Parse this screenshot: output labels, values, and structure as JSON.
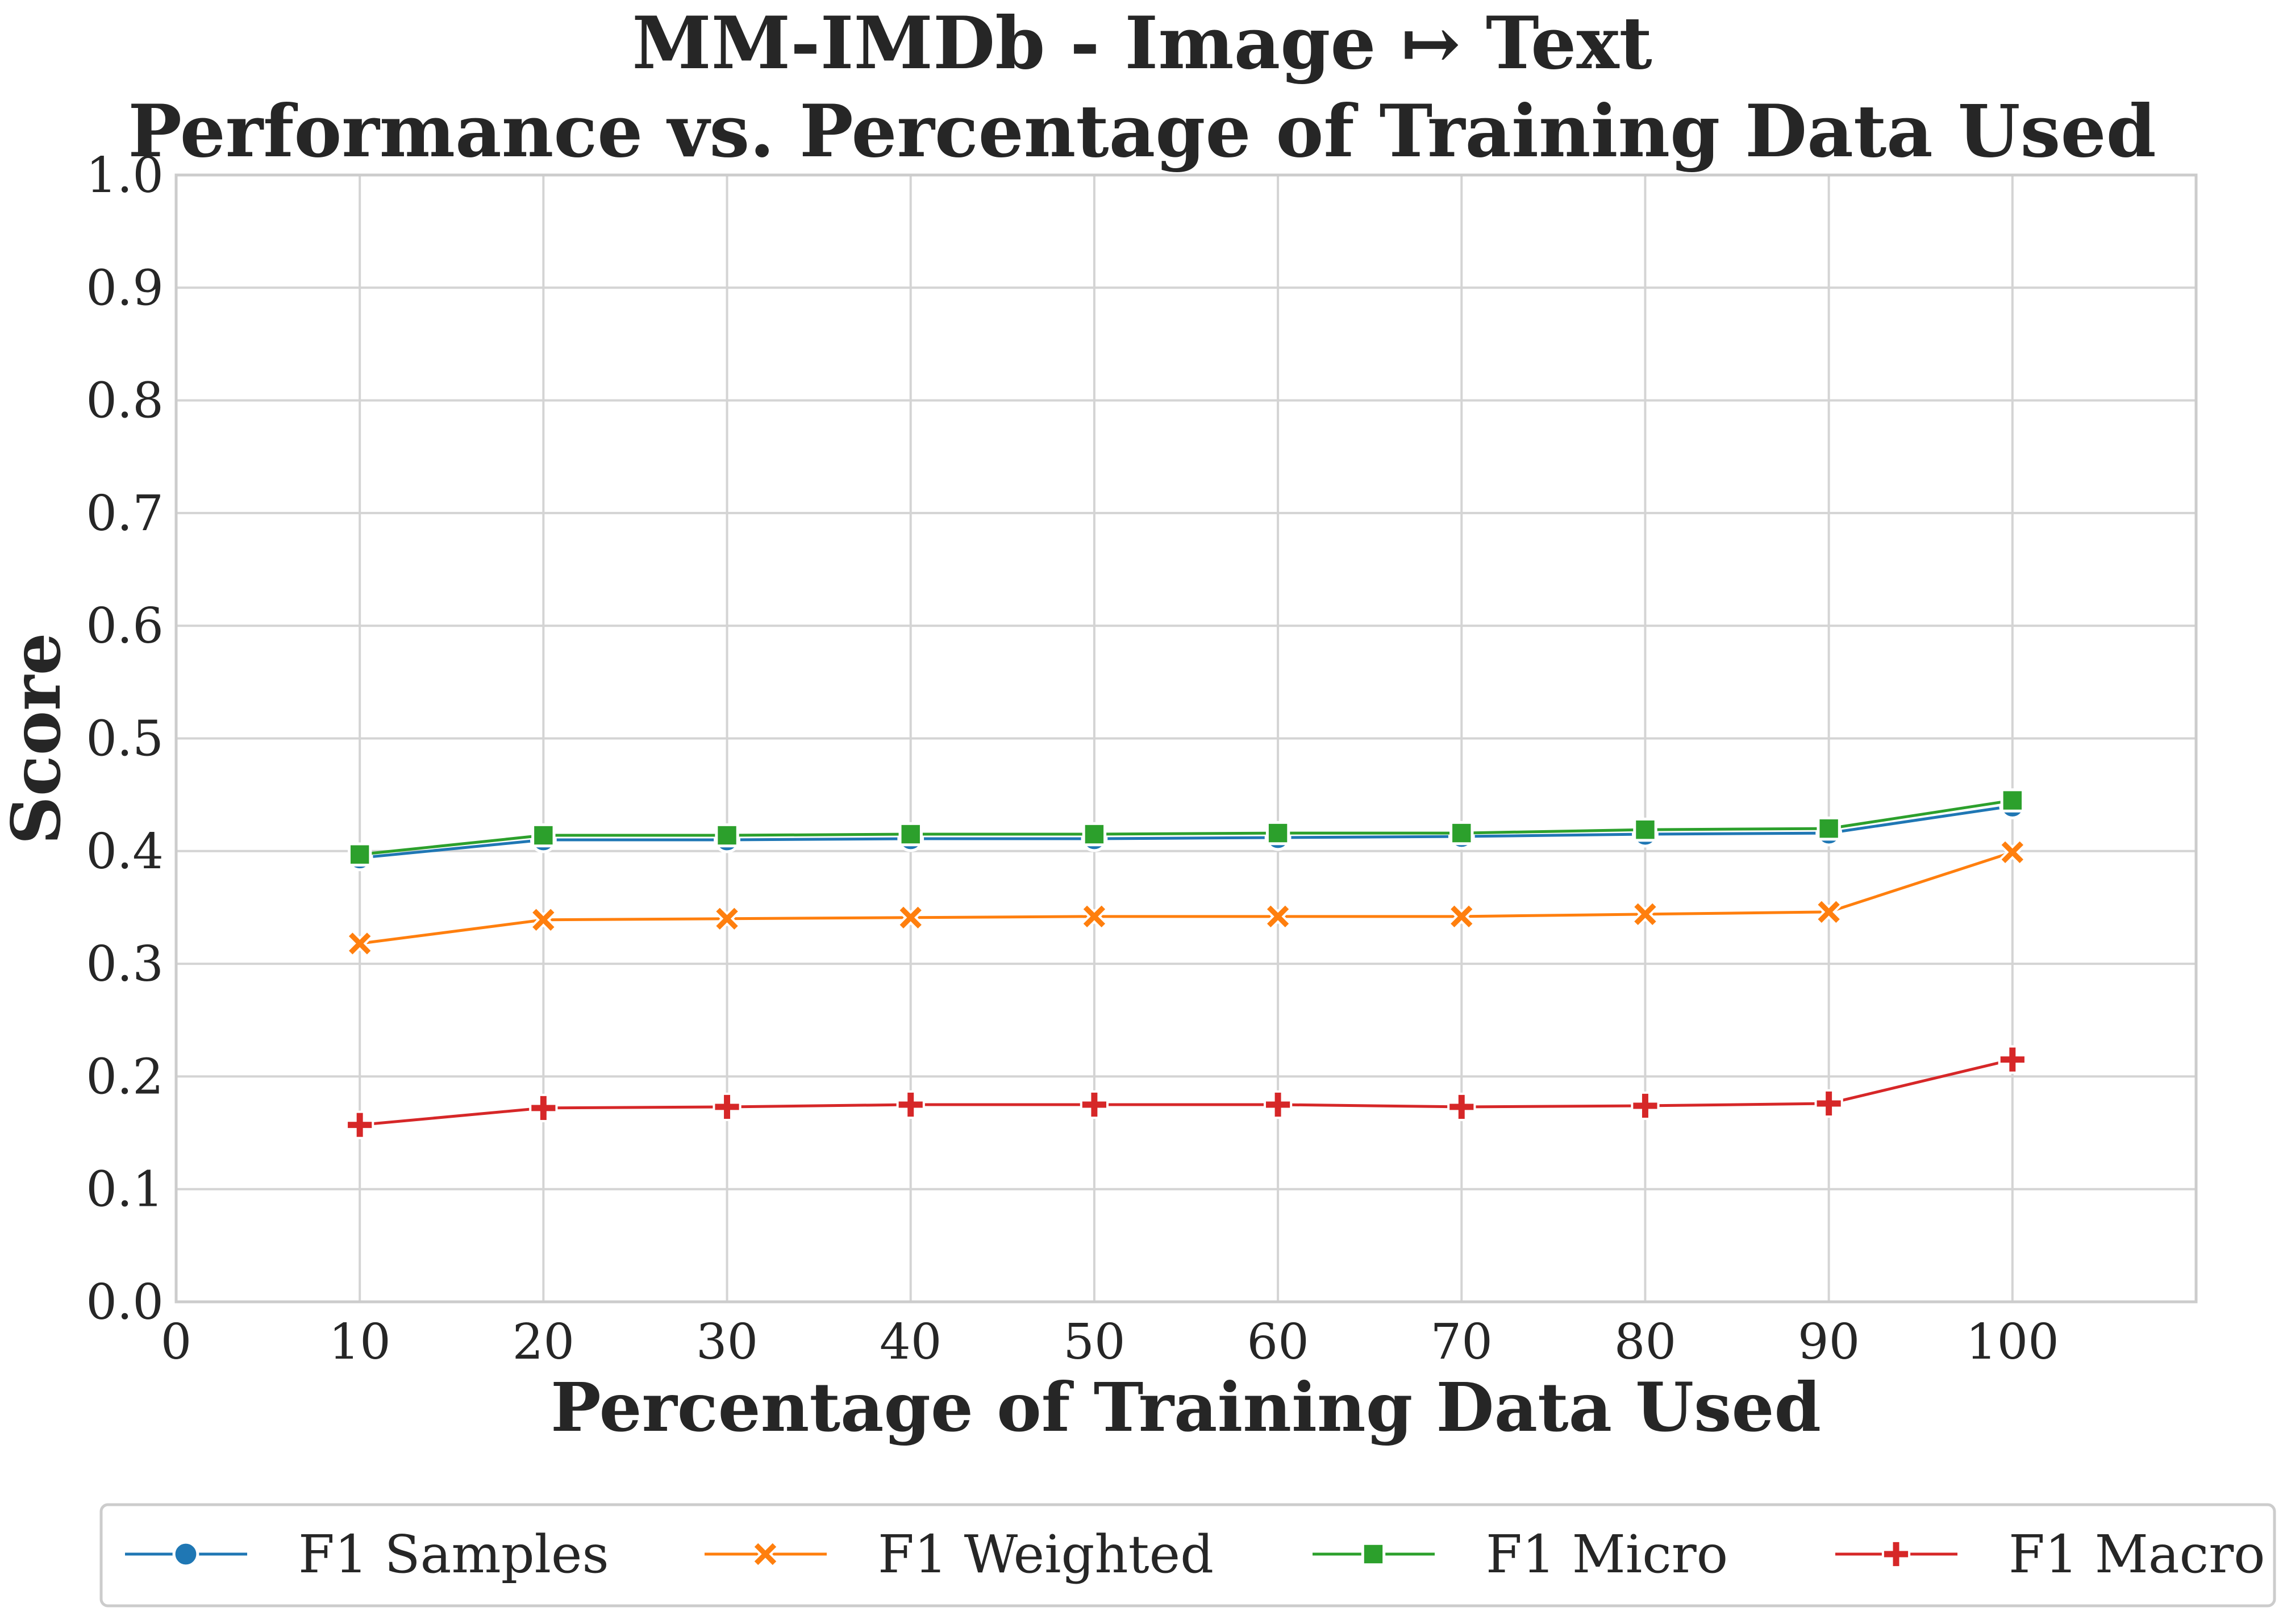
{
  "chart_data": {
    "type": "line",
    "title_lines": [
      "MM-IMDb - Image ↦ Text",
      "Performance vs. Percentage of Training Data Used"
    ],
    "xlabel": "Percentage of Training Data Used",
    "ylabel": "Score",
    "xlim": [
      0,
      110
    ],
    "ylim": [
      0,
      1.0
    ],
    "xticks": [
      0,
      10,
      20,
      30,
      40,
      50,
      60,
      70,
      80,
      90,
      100
    ],
    "yticks": [
      0.0,
      0.1,
      0.2,
      0.3,
      0.4,
      0.5,
      0.6,
      0.7,
      0.8,
      0.9,
      1.0
    ],
    "ytick_labels": [
      "0.0",
      "0.1",
      "0.2",
      "0.3",
      "0.4",
      "0.5",
      "0.6",
      "0.7",
      "0.8",
      "0.9",
      "1.0"
    ],
    "grid": true,
    "legend_position": "bottom, outside",
    "x": [
      10,
      20,
      30,
      40,
      50,
      60,
      70,
      80,
      90,
      100
    ],
    "series": [
      {
        "name": "F1 Samples",
        "color": "#1f77b4",
        "marker": "circle",
        "values": [
          0.394,
          0.41,
          0.41,
          0.411,
          0.411,
          0.412,
          0.413,
          0.415,
          0.416,
          0.44
        ]
      },
      {
        "name": "F1 Weighted",
        "color": "#ff7f0e",
        "marker": "x",
        "values": [
          0.318,
          0.339,
          0.34,
          0.341,
          0.342,
          0.342,
          0.342,
          0.344,
          0.346,
          0.399
        ]
      },
      {
        "name": "F1 Micro",
        "color": "#2ca02c",
        "marker": "square",
        "values": [
          0.397,
          0.414,
          0.414,
          0.415,
          0.415,
          0.416,
          0.416,
          0.419,
          0.42,
          0.445
        ]
      },
      {
        "name": "F1 Macro",
        "color": "#d62728",
        "marker": "plus",
        "values": [
          0.157,
          0.172,
          0.173,
          0.175,
          0.175,
          0.175,
          0.173,
          0.174,
          0.176,
          0.215
        ]
      }
    ]
  }
}
